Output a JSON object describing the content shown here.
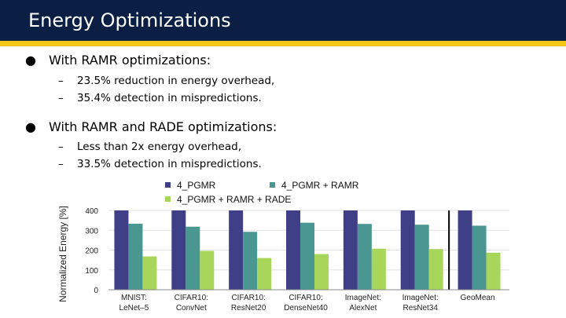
{
  "header": {
    "title": "Energy Optimizations",
    "colors": {
      "bar": "#0b1f44",
      "stripe": "#f5c518"
    }
  },
  "bullets": [
    {
      "text": "With RAMR optimizations:",
      "subitems": [
        "23.5% reduction in energy overhead,",
        "35.4% detection in mispredictions."
      ]
    },
    {
      "text": "With RAMR and RADE optimizations:",
      "subitems": [
        "Less than 2x energy overhead,",
        "33.5% detection in mispredictions."
      ]
    }
  ],
  "chart_data": {
    "type": "bar",
    "ylabel": "Normalized Energy [%]",
    "ylim": [
      0,
      400
    ],
    "yticks": [
      0,
      100,
      200,
      300,
      400
    ],
    "grid": true,
    "legend_placement": "top",
    "categories": [
      [
        "MNIST:",
        "LeNet–5"
      ],
      [
        "CIFAR10:",
        "ConvNet"
      ],
      [
        "CIFAR10:",
        "ResNet20"
      ],
      [
        "CIFAR10:",
        "DenseNet40"
      ],
      [
        "ImageNet:",
        "AlexNet"
      ],
      [
        "ImageNet:",
        "ResNet34"
      ],
      [
        "GeoMean"
      ]
    ],
    "series": [
      {
        "name": "4_PGMR",
        "color": "#3f3f87",
        "values": [
          400,
          400,
          400,
          400,
          400,
          400,
          400
        ]
      },
      {
        "name": "4_PGMR + RAMR",
        "color": "#4a9690",
        "values": [
          333,
          318,
          292,
          338,
          332,
          328,
          323
        ]
      },
      {
        "name": "4_PGMR + RAMR + RADE",
        "color": "#a8d65a",
        "values": [
          168,
          196,
          160,
          180,
          207,
          205,
          187
        ]
      }
    ],
    "separator_before_category": 6
  }
}
